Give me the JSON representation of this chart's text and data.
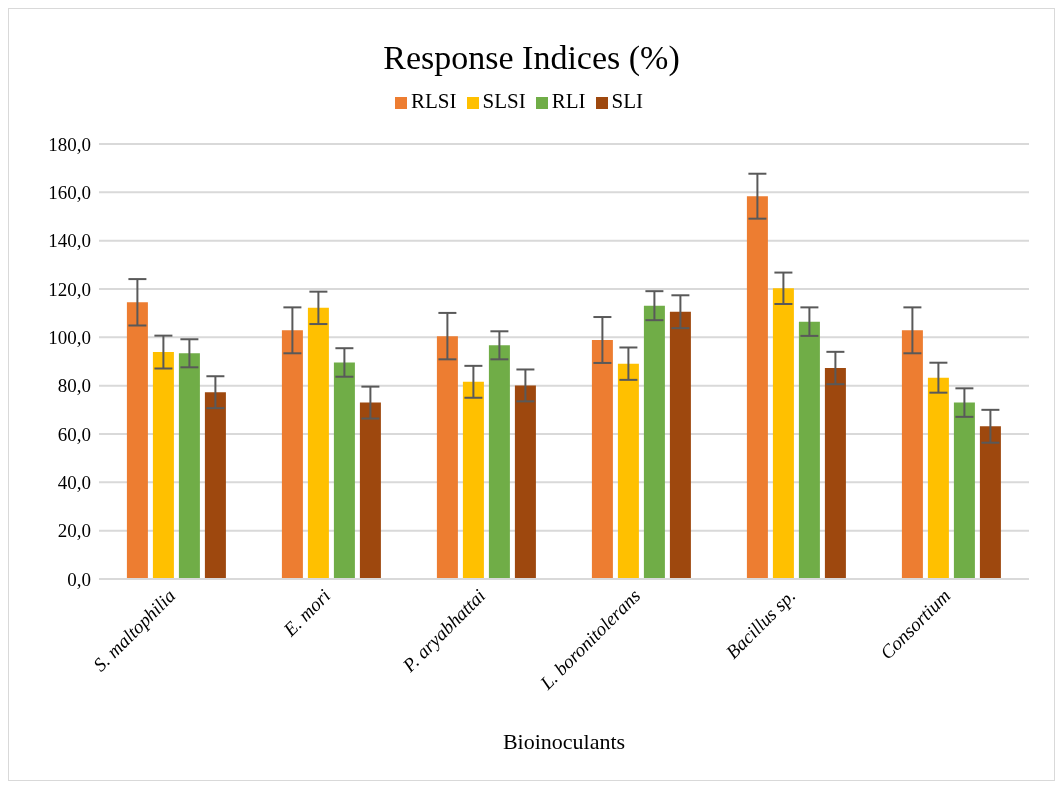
{
  "chart_data": {
    "type": "bar",
    "title": "Response Indices (%)",
    "xlabel": "Bioinoculants",
    "categories": [
      "S. maltophilia",
      "E. mori",
      "P. aryabhattai",
      "L. boronitolerans",
      "Bacillus sp.",
      "Consortium"
    ],
    "series": [
      {
        "name": "RLSI",
        "color": "#ed7d31",
        "values": [
          114.5,
          102.9,
          100.5,
          98.9,
          158.4,
          102.9
        ],
        "errors": [
          9.6,
          9.5,
          9.6,
          9.5,
          9.3,
          9.5
        ]
      },
      {
        "name": "SLSI",
        "color": "#ffc000",
        "values": [
          93.9,
          112.2,
          81.6,
          89.1,
          120.3,
          83.3
        ],
        "errors": [
          6.8,
          6.7,
          6.6,
          6.7,
          6.5,
          6.2
        ]
      },
      {
        "name": "RLI",
        "color": "#70ad47",
        "values": [
          93.4,
          89.6,
          96.7,
          113.1,
          106.5,
          73.0
        ],
        "errors": [
          5.8,
          5.9,
          5.8,
          6.0,
          5.9,
          5.9
        ]
      },
      {
        "name": "SLI",
        "color": "#9e480e",
        "values": [
          77.3,
          73.0,
          80.1,
          110.6,
          87.3,
          63.2
        ],
        "errors": [
          6.6,
          6.6,
          6.6,
          6.8,
          6.7,
          6.8
        ]
      }
    ],
    "ylim": [
      0,
      180
    ],
    "yticks": [
      {
        "value": 0,
        "label": "0,0"
      },
      {
        "value": 20,
        "label": "20,0"
      },
      {
        "value": 40,
        "label": "40,0"
      },
      {
        "value": 60,
        "label": "60,0"
      },
      {
        "value": 80,
        "label": "80,0"
      },
      {
        "value": 100,
        "label": "100,0"
      },
      {
        "value": 120,
        "label": "120,0"
      },
      {
        "value": 140,
        "label": "140,0"
      },
      {
        "value": 160,
        "label": "160,0"
      },
      {
        "value": 180,
        "label": "180,0"
      }
    ],
    "grid": "y",
    "legend": "top"
  }
}
